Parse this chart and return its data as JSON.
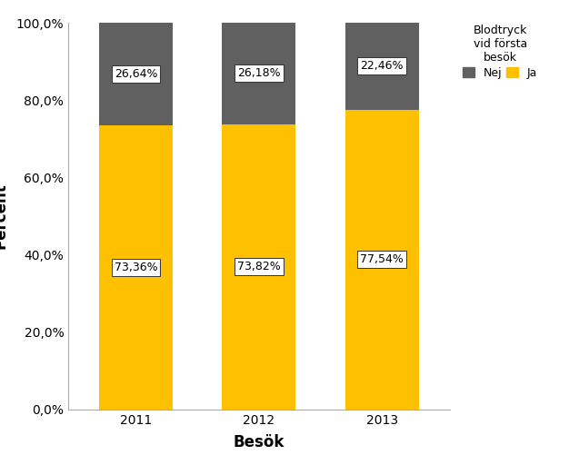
{
  "categories": [
    "2011",
    "2012",
    "2013"
  ],
  "yes_values": [
    73.36,
    73.82,
    77.54
  ],
  "no_values": [
    26.64,
    26.18,
    22.46
  ],
  "yes_labels": [
    "73,36%",
    "73,82%",
    "77,54%"
  ],
  "no_labels": [
    "26,64%",
    "26,18%",
    "22,46%"
  ],
  "yes_color": "#FFC000",
  "no_color": "#606060",
  "xlabel": "Besök",
  "ylabel": "Percent",
  "ylim": [
    0,
    100
  ],
  "yticks": [
    0,
    20,
    40,
    60,
    80,
    100
  ],
  "ytick_labels": [
    "0,0%",
    "20,0%",
    "40,0%",
    "60,0%",
    "80,0%",
    "100,0%"
  ],
  "legend_title": "Blodtryck\nvid första\nbesök",
  "legend_labels": [
    "Nej",
    "Ja"
  ],
  "bar_width": 0.6,
  "label_fontsize": 9,
  "axis_fontsize": 10,
  "tick_fontsize": 10,
  "legend_fontsize": 9,
  "background_color": "#ffffff"
}
